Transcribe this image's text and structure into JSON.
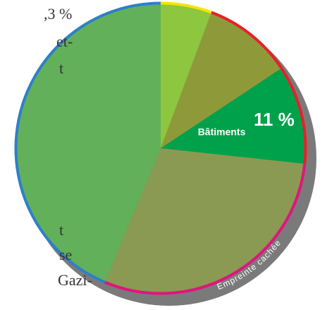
{
  "chart_data": {
    "type": "pie",
    "values": [
      5.7,
      10,
      11,
      29.6,
      43.7
    ],
    "labels": [
      null,
      null,
      "Bâtiments",
      null,
      null
    ],
    "value_labels": [
      null,
      null,
      "11 %",
      null,
      null
    ],
    "colors": [
      "#8dc63f",
      "#8e9a3a",
      "#00a14b",
      "#8a9a52",
      "#62b05a"
    ],
    "border_colors": [
      "#f5e400",
      "#e8202a",
      "#e8202a",
      "#e0147f",
      "#2f7fc8"
    ],
    "shadow_label": "Empreinte cachée",
    "side_text": [
      ",3 %",
      "et-",
      "t",
      "t",
      "se",
      "Gazi-"
    ]
  }
}
